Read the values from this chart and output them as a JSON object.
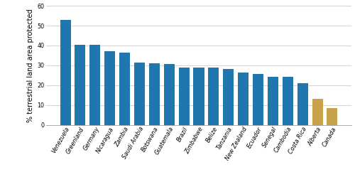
{
  "categories": [
    "Venezuela",
    "Greenland",
    "Germany",
    "Nicaragua",
    "Zambia",
    "Saudi Arabia",
    "Botswana",
    "Guatemala",
    "Brazil",
    "Zimbabwe",
    "Belize",
    "Tanzania",
    "New Zealand",
    "Ecuador",
    "Senegal",
    "Cambodia",
    "Costa Rica",
    "Alberta",
    "Canada"
  ],
  "values": [
    53.0,
    40.5,
    40.4,
    37.0,
    36.3,
    31.2,
    31.1,
    30.8,
    28.7,
    28.7,
    28.7,
    28.2,
    26.4,
    25.5,
    24.3,
    24.2,
    21.0,
    13.0,
    8.4
  ],
  "bar_colors": [
    "#2176ae",
    "#2176ae",
    "#2176ae",
    "#2176ae",
    "#2176ae",
    "#2176ae",
    "#2176ae",
    "#2176ae",
    "#2176ae",
    "#2176ae",
    "#2176ae",
    "#2176ae",
    "#2176ae",
    "#2176ae",
    "#2176ae",
    "#2176ae",
    "#2176ae",
    "#c8a24b",
    "#c8a24b"
  ],
  "ylabel": "% terrestrial land area protected",
  "ylim": [
    0,
    60
  ],
  "yticks": [
    0,
    10,
    20,
    30,
    40,
    50,
    60
  ],
  "background_color": "#ffffff",
  "grid_color": "#cccccc",
  "bar_edge_color": "none",
  "tick_label_fontsize": 5.8,
  "ylabel_fontsize": 7.0,
  "bar_width": 0.72
}
